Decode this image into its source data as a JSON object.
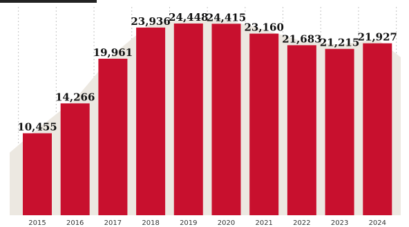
{
  "chart_data": {
    "type": "bar",
    "categories": [
      "2015",
      "2016",
      "2017",
      "2018",
      "2019",
      "2020",
      "2021",
      "2022",
      "2023",
      "2024"
    ],
    "values": [
      10455,
      14266,
      19961,
      23936,
      24448,
      24415,
      23160,
      21683,
      21215,
      21927
    ],
    "data_labels": [
      "10,455",
      "14,266",
      "19,961",
      "23,936",
      "24,448",
      "24,415",
      "23,160",
      "21,683",
      "21,215",
      "21,927"
    ],
    "ylim": [
      0,
      24448
    ],
    "grid": true,
    "colors": {
      "bar": "#c8102e",
      "area": "#ece8e1",
      "grid": "#c4c4c4",
      "band": "#222222"
    }
  }
}
